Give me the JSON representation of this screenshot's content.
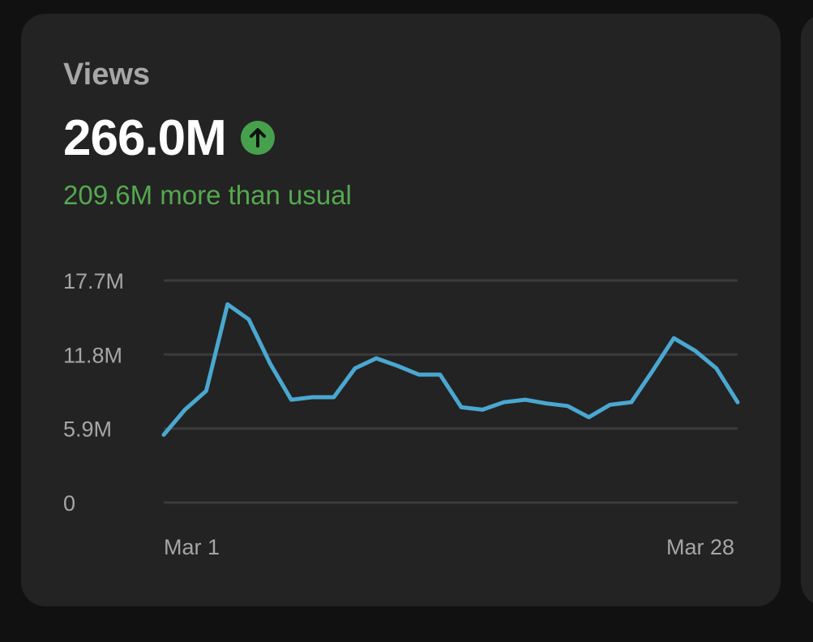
{
  "card": {
    "title": "Views",
    "value": "266.0M",
    "trend_icon": "arrow-up-circle-icon",
    "trend_color": "#46a04c",
    "subtext": "209.6M more than usual"
  },
  "chart_data": {
    "type": "line",
    "x": [
      "Mar 1",
      "Mar 2",
      "Mar 3",
      "Mar 4",
      "Mar 5",
      "Mar 6",
      "Mar 7",
      "Mar 8",
      "Mar 9",
      "Mar 10",
      "Mar 11",
      "Mar 12",
      "Mar 13",
      "Mar 14",
      "Mar 15",
      "Mar 16",
      "Mar 17",
      "Mar 18",
      "Mar 19",
      "Mar 20",
      "Mar 21",
      "Mar 22",
      "Mar 23",
      "Mar 24",
      "Mar 25",
      "Mar 26",
      "Mar 27",
      "Mar 28"
    ],
    "series": [
      {
        "color": "#4aa8d0",
        "values": [
          5.4,
          7.4,
          8.9,
          15.8,
          14.6,
          11.1,
          8.2,
          8.4,
          8.4,
          10.7,
          11.5,
          10.9,
          10.2,
          10.2,
          7.6,
          7.4,
          8.0,
          8.2,
          7.9,
          7.7,
          6.8,
          7.8,
          8.0,
          10.5,
          13.1,
          12.1,
          10.7,
          8.0
        ]
      }
    ],
    "yticks": [
      "0",
      "5.9M",
      "11.8M",
      "17.7M"
    ],
    "ytick_values": [
      0,
      5.9,
      11.8,
      17.7
    ],
    "xtick_labels": [
      "Mar 1",
      "Mar 28"
    ],
    "ylim": [
      0,
      17.7
    ],
    "grid": true,
    "line_color": "#4aa8d0",
    "grid_color": "#3b3b3b"
  }
}
